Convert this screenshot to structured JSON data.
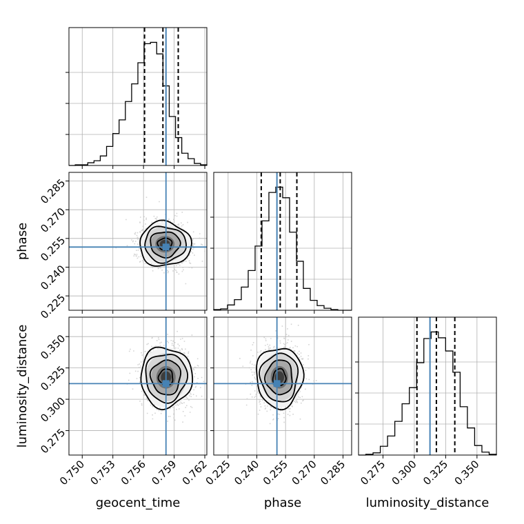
{
  "chart_data": {
    "type": "corner",
    "parameters": [
      "geocent_time",
      "phase",
      "luminosity_distance"
    ],
    "truths": [
      0.7582,
      0.2505,
      0.3125
    ],
    "colors": {
      "truth": "#4682b4",
      "hist": "#000000",
      "grid": "#b0b0b0"
    },
    "ranges": [
      [
        0.7487,
        0.7622
      ],
      [
        0.2175,
        0.2895
      ],
      [
        0.2555,
        0.3655
      ]
    ],
    "ticks": [
      {
        "values": [
          0.75,
          0.753,
          0.756,
          0.759,
          0.762
        ],
        "labels": [
          "0.750",
          "0.753",
          "0.756",
          "0.759",
          "0.762"
        ]
      },
      {
        "values": [
          0.225,
          0.24,
          0.255,
          0.27,
          0.285
        ],
        "labels": [
          "0.225",
          "0.240",
          "0.255",
          "0.270",
          "0.285"
        ]
      },
      {
        "values": [
          0.275,
          0.3,
          0.325,
          0.35
        ],
        "labels": [
          "0.275",
          "0.300",
          "0.325",
          "0.350"
        ]
      }
    ],
    "quantiles": [
      [
        0.7561,
        0.7579,
        0.7594
      ],
      [
        0.2423,
        0.2522,
        0.2609
      ],
      [
        0.3021,
        0.3176,
        0.3323
      ]
    ],
    "histograms": [
      {
        "edges_range": [
          0.7487,
          0.7622
        ],
        "counts": [
          0,
          1,
          1,
          4,
          7,
          14,
          28,
          47,
          67,
          94,
          120,
          151,
          179,
          181,
          164,
          117,
          72,
          41,
          18,
          10,
          3,
          1
        ]
      },
      {
        "edges_range": [
          0.2175,
          0.2895
        ],
        "counts": [
          1,
          2,
          8,
          16,
          35,
          60,
          97,
          135,
          178,
          186,
          170,
          118,
          74,
          33,
          15,
          7,
          3,
          1,
          0,
          0
        ]
      },
      {
        "edges_range": [
          0.2555,
          0.3655
        ],
        "counts": [
          0,
          1,
          3,
          12,
          26,
          46,
          70,
          92,
          126,
          159,
          168,
          160,
          142,
          113,
          66,
          37,
          13,
          4,
          1
        ]
      }
    ],
    "pairs": [
      {
        "x": 0,
        "y": 1,
        "x_mean": 0.7581,
        "y_mean": 0.252,
        "x_sd": 0.0012,
        "y_sd": 0.0058,
        "rho": 0.05
      },
      {
        "x": 0,
        "y": 2,
        "x_mean": 0.7582,
        "y_mean": 0.3175,
        "x_sd": 0.0012,
        "y_sd": 0.012,
        "rho": 0.02
      },
      {
        "x": 1,
        "y": 2,
        "x_mean": 0.2518,
        "y_mean": 0.3175,
        "x_sd": 0.0058,
        "y_sd": 0.012,
        "rho": -0.05
      }
    ]
  }
}
